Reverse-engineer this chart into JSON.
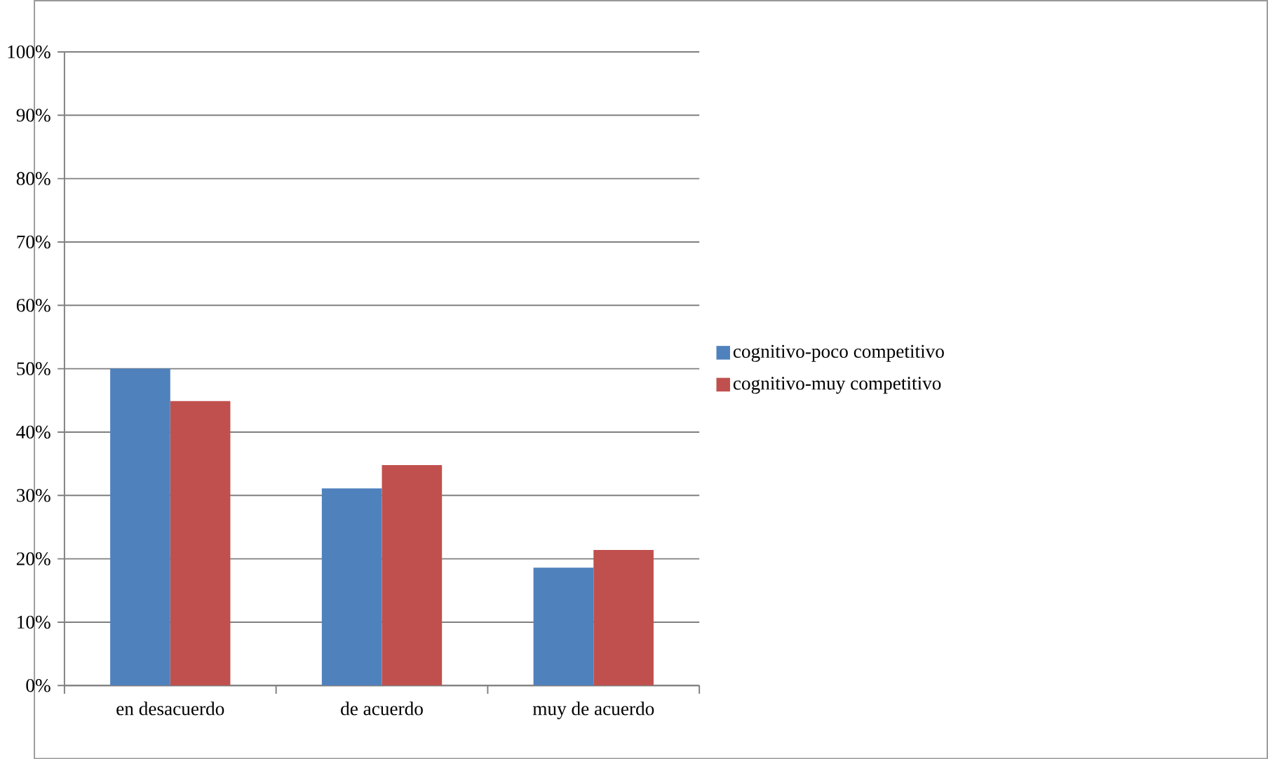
{
  "chart_data": {
    "type": "bar",
    "categories": [
      "en desacuerdo",
      "de acuerdo",
      "muy de acuerdo"
    ],
    "series": [
      {
        "name": "cognitivo-poco competitivo",
        "color": "#4f81bd",
        "values": [
          50,
          31.1,
          18.6
        ]
      },
      {
        "name": "cognitivo-muy competitivo",
        "color": "#c0504d",
        "values": [
          44.9,
          34.8,
          21.4
        ]
      }
    ],
    "ylim": [
      0,
      100
    ],
    "yticks": [
      {
        "value": 0,
        "label": "0%"
      },
      {
        "value": 10,
        "label": "10%"
      },
      {
        "value": 20,
        "label": "20%"
      },
      {
        "value": 30,
        "label": "30%"
      },
      {
        "value": 40,
        "label": "40%"
      },
      {
        "value": 50,
        "label": "50%"
      },
      {
        "value": 60,
        "label": "60%"
      },
      {
        "value": 70,
        "label": "70%"
      },
      {
        "value": 80,
        "label": "80%"
      },
      {
        "value": 90,
        "label": "90%"
      },
      {
        "value": 100,
        "label": "100%"
      }
    ],
    "grid": "y",
    "legend": "right"
  }
}
